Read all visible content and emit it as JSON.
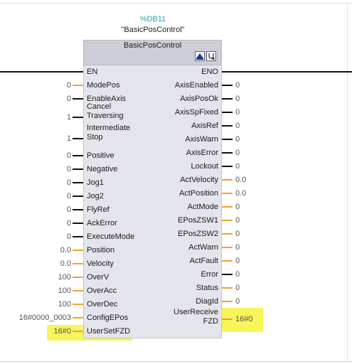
{
  "instance": {
    "db_number": "%DB11",
    "db_name": "\"BasicPosControl\""
  },
  "block": {
    "title": "BasicPosControl",
    "icons": [
      "block-icon",
      "diagnostics-icon"
    ]
  },
  "colors": {
    "bool_wire": "#111111",
    "value_wire": "#f0a22a",
    "db_label": "#2f9faf",
    "highlight": "#f6f34a"
  },
  "en": "EN",
  "eno": "ENO",
  "inputs": [
    {
      "name": "ModePos",
      "value": "0",
      "wire": "orange"
    },
    {
      "name": "EnableAxis",
      "value": "0",
      "wire": "black"
    },
    {
      "name": "Cancel\nTraversing",
      "value": "1",
      "wire": "black"
    },
    {
      "name": "Intermediate\nStop",
      "value": "1",
      "wire": "black"
    },
    {
      "name": "Positive",
      "value": "0",
      "wire": "black"
    },
    {
      "name": "Negative",
      "value": "0",
      "wire": "black"
    },
    {
      "name": "Jog1",
      "value": "0",
      "wire": "black"
    },
    {
      "name": "Jog2",
      "value": "0",
      "wire": "black"
    },
    {
      "name": "FlyRef",
      "value": "0",
      "wire": "black"
    },
    {
      "name": "AckError",
      "value": "0",
      "wire": "black"
    },
    {
      "name": "ExecuteMode",
      "value": "0",
      "wire": "black"
    },
    {
      "name": "Position",
      "value": "0.0",
      "wire": "orange"
    },
    {
      "name": "Velocity",
      "value": "0.0",
      "wire": "orange"
    },
    {
      "name": "OverV",
      "value": "100",
      "wire": "orange"
    },
    {
      "name": "OverAcc",
      "value": "100",
      "wire": "orange"
    },
    {
      "name": "OverDec",
      "value": "100",
      "wire": "orange"
    },
    {
      "name": "ConfigEPos",
      "value": "16#0000_0003",
      "wire": "orange"
    },
    {
      "name": "UserSetFZD",
      "value": "16#0",
      "wire": "orange"
    }
  ],
  "outputs": [
    {
      "name": "AxisEnabled",
      "value": "0",
      "wire": "black"
    },
    {
      "name": "AxisPosOk",
      "value": "0",
      "wire": "black"
    },
    {
      "name": "AxisSpFixed",
      "value": "0",
      "wire": "black"
    },
    {
      "name": "AxisRef",
      "value": "0",
      "wire": "black"
    },
    {
      "name": "AxisWarn",
      "value": "0",
      "wire": "black"
    },
    {
      "name": "AxisError",
      "value": "0",
      "wire": "black"
    },
    {
      "name": "Lockout",
      "value": "0",
      "wire": "black"
    },
    {
      "name": "ActVelocity",
      "value": "0.0",
      "wire": "orange"
    },
    {
      "name": "ActPosition",
      "value": "0.0",
      "wire": "orange"
    },
    {
      "name": "ActMode",
      "value": "0",
      "wire": "orange"
    },
    {
      "name": "EPosZSW1",
      "value": "0",
      "wire": "orange"
    },
    {
      "name": "EPosZSW2",
      "value": "0",
      "wire": "orange"
    },
    {
      "name": "ActWarn",
      "value": "0",
      "wire": "orange"
    },
    {
      "name": "ActFault",
      "value": "0",
      "wire": "orange"
    },
    {
      "name": "Error",
      "value": "0",
      "wire": "black"
    },
    {
      "name": "Status",
      "value": "0",
      "wire": "orange"
    },
    {
      "name": "DiagId",
      "value": "0",
      "wire": "orange"
    },
    {
      "name": "UserReceive\nFZD",
      "value": "16#0",
      "wire": "orange"
    }
  ]
}
